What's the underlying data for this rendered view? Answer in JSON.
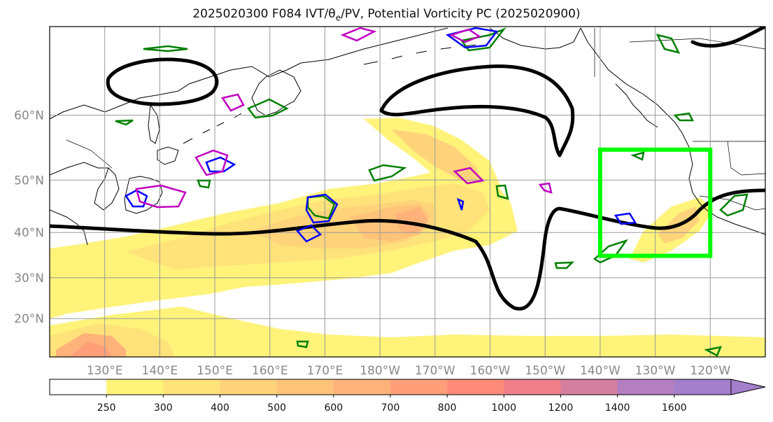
{
  "title": {
    "prefix": "2025020300 F084 IVT/",
    "theta": "θ",
    "theta_sub": "e",
    "suffix": "/PV, Potential Vorticity PC (2025020900)"
  },
  "map": {
    "lat_labels": [
      "60°N",
      "50°N",
      "40°N",
      "30°N",
      "20°N"
    ],
    "lat_values": [
      60,
      50,
      40,
      30,
      20
    ],
    "lon_labels": [
      "130°E",
      "140°E",
      "150°E",
      "160°E",
      "170°E",
      "180°W",
      "170°W",
      "160°W",
      "150°W",
      "140°W",
      "130°W",
      "120°W"
    ],
    "lon_values": [
      130,
      140,
      150,
      160,
      170,
      180,
      190,
      200,
      210,
      220,
      230,
      240
    ],
    "extent": {
      "lon_min": 120,
      "lon_max": 250,
      "lat_min": 10,
      "lat_max": 70
    },
    "highlight_box": {
      "lon_min": 220,
      "lon_max": 240,
      "lat_min": 35,
      "lat_max": 55,
      "color": "#00ff00"
    }
  },
  "colorbar": {
    "levels": [
      "250",
      "300",
      "400",
      "500",
      "600",
      "700",
      "800",
      "1000",
      "1200",
      "1400",
      "1600"
    ],
    "colors": [
      "#ffffff",
      "#fff37a",
      "#ffe27a",
      "#ffd37a",
      "#ffc37a",
      "#ffb27a",
      "#ff9f7a",
      "#ff8c7a",
      "#ee7f8a",
      "#d47fa0",
      "#b47fc0",
      "#a47fcc"
    ]
  },
  "colors": {
    "pv_contour": "#000000",
    "green_contour": "#008000",
    "blue_contour": "#0000ff",
    "magenta_contour": "#c000c0",
    "grid": "#999999"
  }
}
